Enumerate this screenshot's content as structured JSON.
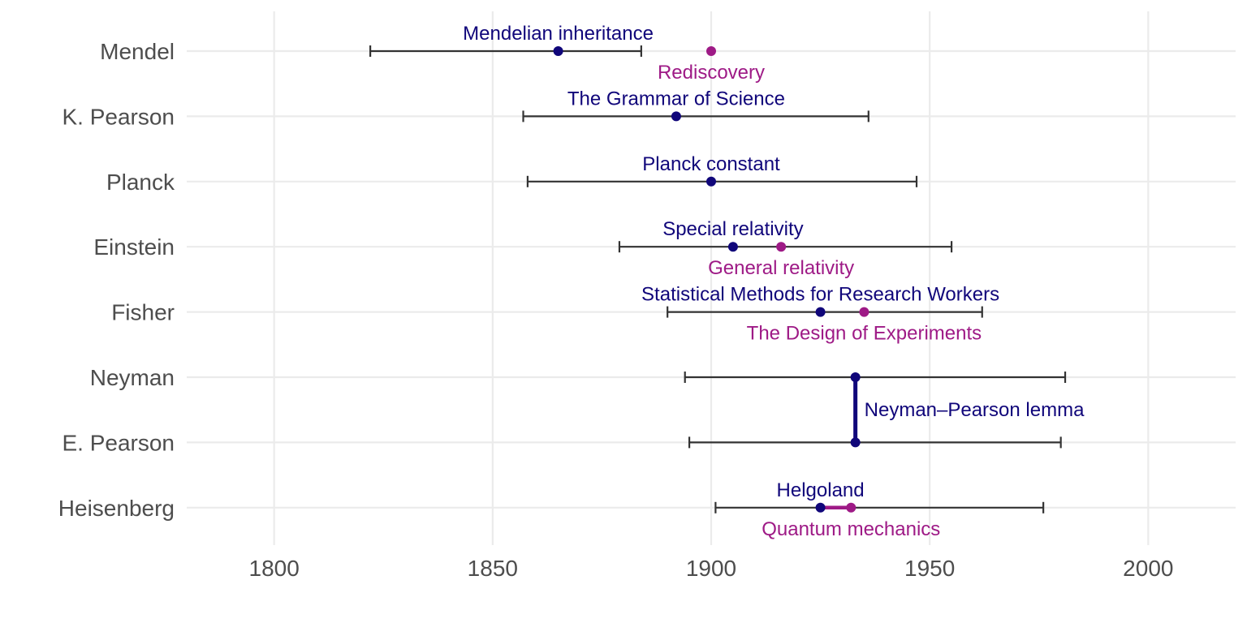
{
  "chart_data": {
    "type": "timeline",
    "title": "",
    "xlabel": "",
    "ylabel": "",
    "xlim": [
      1780,
      2020
    ],
    "x_ticks": [
      1800,
      1850,
      1900,
      1950,
      2000
    ],
    "x_tick_labels": [
      "1800",
      "1850",
      "1900",
      "1950",
      "2000"
    ],
    "grid": true,
    "legend": "none",
    "colors": {
      "primary": "#10067a",
      "secondary": "#9e1a86",
      "life": "#333333",
      "grid": "#ebebeb"
    },
    "people": [
      {
        "name": "Mendel",
        "birth": 1822,
        "death": 1884
      },
      {
        "name": "K. Pearson",
        "birth": 1857,
        "death": 1936
      },
      {
        "name": "Planck",
        "birth": 1858,
        "death": 1947
      },
      {
        "name": "Einstein",
        "birth": 1879,
        "death": 1955
      },
      {
        "name": "Fisher",
        "birth": 1890,
        "death": 1962
      },
      {
        "name": "Neyman",
        "birth": 1894,
        "death": 1981
      },
      {
        "name": "E. Pearson",
        "birth": 1895,
        "death": 1980
      },
      {
        "name": "Heisenberg",
        "birth": 1901,
        "death": 1976
      }
    ],
    "events": [
      {
        "person": "Mendel",
        "year": 1865,
        "label": "Mendelian inheritance",
        "color": "primary",
        "label_pos": "above"
      },
      {
        "person": "Mendel",
        "year": 1900,
        "label": "Rediscovery",
        "color": "secondary",
        "label_pos": "below"
      },
      {
        "person": "K. Pearson",
        "year": 1892,
        "label": "The Grammar of Science",
        "color": "primary",
        "label_pos": "above"
      },
      {
        "person": "Planck",
        "year": 1900,
        "label": "Planck constant",
        "color": "primary",
        "label_pos": "above"
      },
      {
        "person": "Einstein",
        "year": 1905,
        "label": "Special relativity",
        "color": "primary",
        "label_pos": "above"
      },
      {
        "person": "Einstein",
        "year": 1916,
        "label": "General relativity",
        "color": "secondary",
        "label_pos": "below"
      },
      {
        "person": "Fisher",
        "year": 1925,
        "label": "Statistical Methods for Research Workers",
        "color": "primary",
        "label_pos": "above"
      },
      {
        "person": "Fisher",
        "year": 1935,
        "label": "The Design of Experiments",
        "color": "secondary",
        "label_pos": "below"
      },
      {
        "person": "Neyman",
        "year": 1933,
        "label": "",
        "color": "primary",
        "label_pos": "none"
      },
      {
        "person": "E. Pearson",
        "year": 1933,
        "label": "",
        "color": "primary",
        "label_pos": "none"
      },
      {
        "person": "Heisenberg",
        "year": 1925,
        "label": "Helgoland",
        "color": "primary",
        "label_pos": "above"
      },
      {
        "person": "Heisenberg",
        "year": 1932,
        "label": "Quantum mechanics",
        "color": "secondary",
        "label_pos": "below"
      }
    ],
    "connectors": [
      {
        "type": "vertical",
        "year": 1933,
        "from": "Neyman",
        "to": "E. Pearson",
        "color": "primary",
        "label": "Neyman–Pearson lemma"
      },
      {
        "type": "horizontal",
        "person": "Heisenberg",
        "from_year": 1925,
        "to_year": 1932,
        "color": "secondary",
        "label": ""
      }
    ]
  }
}
